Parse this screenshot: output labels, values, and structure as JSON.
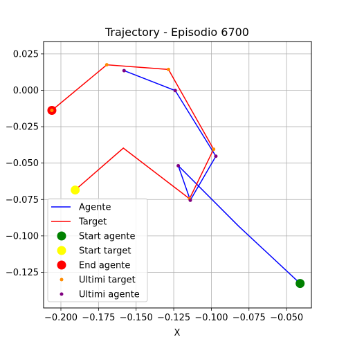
{
  "chart_data": {
    "type": "line",
    "title": "Trajectory - Episodio 6700",
    "xlabel": "X",
    "ylabel": "",
    "xlim": [
      -0.2115,
      -0.0335
    ],
    "ylim": [
      -0.1495,
      0.0335
    ],
    "xticks": [
      -0.2,
      -0.175,
      -0.15,
      -0.125,
      -0.1,
      -0.075,
      -0.05
    ],
    "xtick_labels": [
      "−0.200",
      "−0.175",
      "−0.150",
      "−0.125",
      "−0.100",
      "−0.075",
      "−0.050"
    ],
    "yticks": [
      0.025,
      0.0,
      -0.025,
      -0.05,
      -0.075,
      -0.1,
      -0.125
    ],
    "ytick_labels": [
      "0.025",
      "0.000",
      "−0.025",
      "−0.050",
      "−0.075",
      "−0.100",
      "−0.125"
    ],
    "grid": true,
    "legend_position": "bottom-left",
    "series": [
      {
        "name": "Agente",
        "color": "#0000ff",
        "kind": "line",
        "x": [
          -0.158,
          -0.124,
          -0.097,
          -0.114,
          -0.122,
          -0.082,
          -0.041
        ],
        "y": [
          0.0135,
          -0.0002,
          -0.0453,
          -0.0755,
          -0.0518,
          -0.0932,
          -0.1327
        ]
      },
      {
        "name": "Target",
        "color": "#ff0000",
        "kind": "line",
        "x": [
          -0.206,
          -0.1695,
          -0.1285,
          -0.0985,
          -0.1145,
          -0.1585,
          -0.1905
        ],
        "y": [
          -0.0138,
          0.0175,
          0.0143,
          -0.0405,
          -0.0745,
          -0.0397,
          -0.0685
        ]
      },
      {
        "name": "Start agente",
        "color": "#008000",
        "kind": "marker",
        "x": [
          -0.041
        ],
        "y": [
          -0.1327
        ]
      },
      {
        "name": "Start target",
        "color": "#ffff00",
        "kind": "marker",
        "x": [
          -0.1905
        ],
        "y": [
          -0.0685
        ]
      },
      {
        "name": "End agente",
        "color": "#ff0000",
        "kind": "marker",
        "x": [
          -0.206
        ],
        "y": [
          -0.0138
        ]
      },
      {
        "name": "Ultimi target",
        "color": "#ff8c00",
        "kind": "small-marker",
        "x": [
          -0.206,
          -0.1695,
          -0.1285,
          -0.0985,
          -0.1145
        ],
        "y": [
          -0.0138,
          0.0175,
          0.0143,
          -0.0405,
          -0.0745
        ]
      },
      {
        "name": "Ultimi agente",
        "color": "#800080",
        "kind": "small-marker",
        "x": [
          -0.158,
          -0.124,
          -0.097,
          -0.114,
          -0.122
        ],
        "y": [
          0.0135,
          -0.0002,
          -0.0453,
          -0.0755,
          -0.0518
        ]
      }
    ]
  }
}
